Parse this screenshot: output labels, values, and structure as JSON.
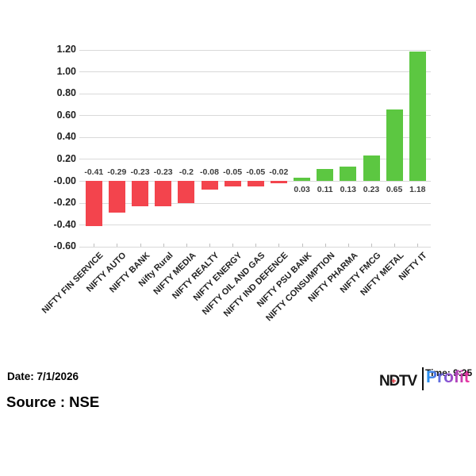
{
  "chart_data": {
    "type": "bar",
    "title": "",
    "xlabel": "",
    "ylabel": "",
    "categories": [
      "NIFTY FIN SERVICE",
      "NIFTY AUTO",
      "NIFTY BANK",
      "Nifty Rural",
      "NIFTY MEDIA",
      "NIFTY REALTY",
      "NIFTY ENERGY",
      "NIFTY OIL AND GAS",
      "NIFTY IND DEFENCE",
      "NIFTY PSU BANK",
      "NIFTY CONSUMPTION",
      "NIFTY PHARMA",
      "NIFTY FMCG",
      "NIFTY METAL",
      "NIFTY IT"
    ],
    "values": [
      -0.41,
      -0.29,
      -0.23,
      -0.23,
      -0.2,
      -0.08,
      -0.05,
      -0.05,
      -0.02,
      0.03,
      0.11,
      0.13,
      0.23,
      0.65,
      1.18
    ],
    "value_labels": [
      "-0.41",
      "-0.29",
      "-0.23",
      "-0.23",
      "-0.2",
      "-0.08",
      "-0.05",
      "-0.05",
      "-0.02",
      "0.03",
      "0.11",
      "0.13",
      "0.23",
      "0.65",
      "1.18"
    ],
    "y_tick_labels": [
      "1.20",
      "1.00",
      "0.80",
      "0.60",
      "0.40",
      "0.20",
      "-0.00",
      "-0.20",
      "-0.40",
      "-0.60"
    ],
    "y_tick_values": [
      1.2,
      1.0,
      0.8,
      0.6,
      0.4,
      0.2,
      0.0,
      -0.2,
      -0.4,
      -0.6
    ],
    "ylim": [
      -0.6,
      1.2
    ],
    "grid": true,
    "legend": "none",
    "positive_color": "#5cc741",
    "negative_color": "#f3444d",
    "gridline_color": "#d9d9d9"
  },
  "footer": {
    "date_label": "Date: 7/1/2026",
    "source_label": "Source : NSE",
    "time_label": "Time: 9:25"
  },
  "logo": {
    "ndtv": "NDTV",
    "plus": "+",
    "plus_color": "#e3262d",
    "profit": "Profit",
    "gradient_start": "#2196f3",
    "gradient_end": "#f1309b"
  }
}
